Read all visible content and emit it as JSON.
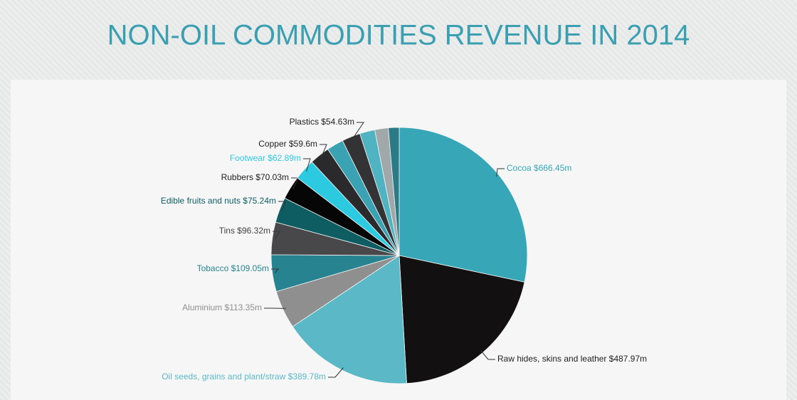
{
  "chart_data": {
    "type": "pie",
    "title": "NON-OIL COMMODITIES REVENUE IN 2014",
    "categories": [
      "Cocoa",
      "Raw hides, skins and leather",
      "Oil seeds, grains and plant/straw",
      "Aluminium",
      "Tobacco",
      "Tins",
      "Edible fruits and nuts",
      "Rubbers",
      "Footwear",
      "Copper",
      null,
      "Plastics",
      null,
      null,
      null
    ],
    "values": [
      666.45,
      487.97,
      389.78,
      113.35,
      109.05,
      96.32,
      75.24,
      70.03,
      62.89,
      59.6,
      50,
      54.63,
      45,
      40,
      32
    ],
    "value_labels": [
      "$666.45m",
      "$487.97m",
      "$389.78m",
      "$113.35m",
      "$109.05m",
      "$96.32m",
      "$75.24m",
      "$70.03m",
      "$62.89m",
      "$59.6m",
      null,
      "$54.63m",
      null,
      null,
      null
    ],
    "colors": [
      "#37a6b6",
      "#121011",
      "#5bb9c7",
      "#8f8f8f",
      "#26838f",
      "#48484a",
      "#0d5d63",
      "#060606",
      "#2ccae1",
      "#2a2a2c",
      "#3aa2b2",
      "#333335",
      "#50b3c1",
      "#a0a8aa",
      "#2a7b86"
    ]
  }
}
